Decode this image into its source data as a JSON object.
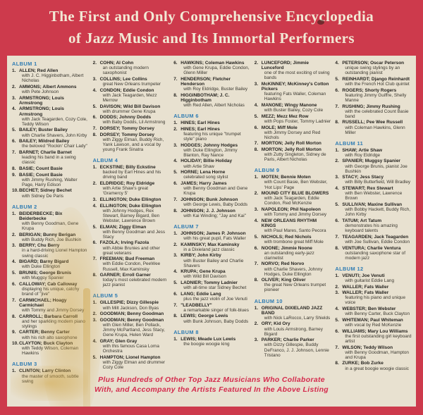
{
  "header": {
    "line1": "The First and Only Comprehensive Encyclopedia",
    "line2": "of Jazz Music and Its Immortal Performers"
  },
  "footer": {
    "line1": "Plus Hundreds of Other Top Jazz Musicians Who Collaborate",
    "line2": "With, and Accompany the Artists Featured In the Above Listing"
  },
  "colors": {
    "frame_red": "#cd3a4c",
    "panel_cream": "#e8e1d0",
    "album_header_blue": "#2f7cb3",
    "body_text": "#262420",
    "footer_red": "#d42b4d"
  },
  "columns": [
    {
      "blocks": [
        {
          "album": "ALBUM 1"
        },
        {
          "num": "1.",
          "name": "ALLEN; Red Allen",
          "desc": "with J. C. Higginbotham, Albert Nicholas"
        },
        {
          "num": "2.",
          "name": "AMMONS; Albert Ammons",
          "desc": "with Pete Johnson"
        },
        {
          "num": "3.",
          "name": "ARMSTRONG; Louis Armstrong",
          "desc": ""
        },
        {
          "num": "4.",
          "name": "ARMSTRONG; Louis Armstrong",
          "desc": "with Jack Teagarden, Cozy Cole, Teddy Wilson"
        },
        {
          "num": "5.",
          "name": "BAILEY; Buster Bailey",
          "desc": "with Charlie Shavers, John Kirby"
        },
        {
          "num": "6.",
          "name": "BAILEY; Mildred Bailey",
          "desc": "the beloved \"Rockin' Chair Lady\""
        },
        {
          "num": "7.",
          "name": "BARNET; Charlie Barnet",
          "desc": "leading his band in a swing classic"
        },
        {
          "num": "8.",
          "name": "BASIE; Count Basie",
          "desc": ""
        },
        {
          "num": "9.",
          "name": "BASIE; Count Basie",
          "desc": "with Jimmy Rushing, Walter Page, Harry Edison"
        },
        {
          "num": "10.",
          "name": "BECHET; Sidney Bechet",
          "desc": "with Sidney De Paris"
        },
        {
          "album": "ALBUM 2"
        },
        {
          "num": "1.",
          "name": "BEIDERBECKE; Bix Beiderbecke",
          "desc": "with Benny Goodman, Gene Krupa"
        },
        {
          "num": "2.",
          "name": "BERIGAN; Bunny Berigan",
          "desc": "with Buddy Rich, Joe Bushkin"
        },
        {
          "num": "3.",
          "name": "BERRY; Chu Berry",
          "desc": "in a hard-driving Lionel Hampton swing classic"
        },
        {
          "num": "4.",
          "name": "BIGARD; Barny Bigard",
          "desc": "with Duke Ellington"
        },
        {
          "num": "5.",
          "name": "BRUNIS; George Brunis",
          "desc": "with Muggsy Spanier"
        },
        {
          "num": "6.",
          "name": "CALLOWAY; Cab Calloway",
          "desc": "displaying his unique, catchy brand of \"jive\""
        },
        {
          "num": "7.",
          "name": "CARMICHAEL; Hoagy Carmichael",
          "desc": "with Tommy and Jimmy Dorsey"
        },
        {
          "num": "8.",
          "name": "CARROLL; Barbara Carroll",
          "desc": "and her sparkling modern piano stylings"
        },
        {
          "num": "9.",
          "name": "CARTER; Benny Carter",
          "desc": "with his rich alto saxophone"
        },
        {
          "num": "10.",
          "name": "CLAYTON; Buck Clayton",
          "desc": "with Teddy Wilson, Coleman Hawkins"
        },
        {
          "album": "ALBUM 3"
        },
        {
          "num": "1.",
          "name": "CLINTON; Larry Clinton",
          "desc": "the master of smooth, subtle swing"
        }
      ]
    },
    {
      "blocks": [
        {
          "num": "2.",
          "name": "COHN; Al Cohn",
          "desc": "an outstanding modern saxophonist"
        },
        {
          "num": "3.",
          "name": "COLLINS; Lee Collins",
          "desc": "great New Orleans trumpeter"
        },
        {
          "num": "4.",
          "name": "CONDON; Eddie Condon",
          "desc": "with Jack Teagarden, Mezz Merrow"
        },
        {
          "num": "5.",
          "name": "DAVISON; Wild Bill Davison",
          "desc": "with drummer Gene Krupa"
        },
        {
          "num": "6.",
          "name": "DODDS; Johnny Dodds",
          "desc": "with Baby Dodds, Lil Armstrong"
        },
        {
          "num": "7.",
          "name": "DORSEY; Tommy Dorsey",
          "desc": ""
        },
        {
          "num": "8.",
          "name": "DORSEY; Tommy Dorsey",
          "desc": "with Ziggy Elman, Buddy Rich, Yank Lawson, and a vocal by young Frank Sinatra"
        },
        {
          "album": "ALBUM 4"
        },
        {
          "num": "1.",
          "name": "ECKSTINE; Billy Eckstine",
          "desc": "backed by Earl Hines and his driving band"
        },
        {
          "num": "2.",
          "name": "ELDRIDGE; Roy Eldridge",
          "desc": "with Artie Shaw's great 'Gramercy 5'"
        },
        {
          "num": "3.",
          "name": "ELLINGTON; Duke Ellington",
          "desc": ""
        },
        {
          "num": "4.",
          "name": "ELLINGTON; Duke Ellington",
          "desc": "with Johnny Hodges, Rex Stewart, Barney Bigard, Ben Webster, Lawrence Brown"
        },
        {
          "num": "5.",
          "name": "ELMAN; Ziggy Elman",
          "desc": "with Benny Goodman and Jess Stacy"
        },
        {
          "num": "6.",
          "name": "FAZOLA; Irving Fazola",
          "desc": "with Abbie Brunies and other great veterans"
        },
        {
          "num": "7.",
          "name": "FREEMAN; Bud Freeman",
          "desc": "with Eddie Condon, PeeWee Russell, Max Kaminsky"
        },
        {
          "num": "8.",
          "name": "GARNER; Erroll Garner",
          "desc": "today's most celebrated modern jazz pianist"
        },
        {
          "album": "ALBUM 5"
        },
        {
          "num": "1.",
          "name": "GILLESPIE; Dizzy Gillespie",
          "desc": "with Milt Jackson, Don Byas"
        },
        {
          "num": "2.",
          "name": "GOODMAN; Benny Goodman",
          "desc": ""
        },
        {
          "num": "3.",
          "name": "GOODMAN; Benny Goodman",
          "desc": "with Glen Miller, Ben Pollack, Jimmy McPartland, Jess Stacy, Gene Krupa, Helen Ward"
        },
        {
          "num": "4.",
          "name": "GRAY; Glen Gray",
          "desc": "with this famous Casa Loma Orchestra"
        },
        {
          "num": "5.",
          "name": "HAMPTON; Lionel Hampton",
          "desc": "with Ziggy Elman and drummer Cozy Cole"
        }
      ]
    },
    {
      "blocks": [
        {
          "num": "6.",
          "name": "HAWKINS; Coleman Hawkins",
          "desc": "with Gene Krupa, Eddie Condon, Glenn Miller"
        },
        {
          "num": "7.",
          "name": "HENDERSON; Fletcher Henderson",
          "desc": "with Roy Eldridge, Buster Bailey"
        },
        {
          "num": "8.",
          "name": "HIGGINBOTHAM; J. C. Higginbotham",
          "desc": "with Red Allen, Albert Nicholas"
        },
        {
          "album": "ALBUM 6"
        },
        {
          "num": "1.",
          "name": "HINES; Earl Hines",
          "desc": ""
        },
        {
          "num": "2.",
          "name": "HINES; Earl Hines",
          "desc": "featuring his unique \"trumpet style\" piano"
        },
        {
          "num": "3.",
          "name": "HODGES; Johnny Hodges",
          "desc": "with Duke Ellington, Jimmy Blanton, Ray Nance"
        },
        {
          "num": "4.",
          "name": "HOLIDAY; Billie Holiday",
          "desc": "with Artie Shaw"
        },
        {
          "num": "5.",
          "name": "HORNE; Lena Horne",
          "desc": "celebrated song stylist"
        },
        {
          "num": "6.",
          "name": "JAMES; Harry James",
          "desc": "with Benny Goodman and Gene Krupa"
        },
        {
          "num": "7.",
          "name": "JOHNSON; Bunk Johnson",
          "desc": "with George Lewis, Baby Dodds"
        },
        {
          "num": "8.",
          "name": "JOHNSON; J. J. Johnson",
          "desc": "with Kai Winding; \"Jay and Kai\""
        },
        {
          "album": "ALBUM 7"
        },
        {
          "num": "1.",
          "name": "JOHNSON; James P. Johnson",
          "desc": "with his great pupil, Fats Waller"
        },
        {
          "num": "2.",
          "name": "KAMINSKY; Max Kaminsky",
          "desc": "in a Dixieland jazz classic"
        },
        {
          "num": "3.",
          "name": "KIRBY; John Kirby",
          "desc": "with Buster Bailey and Charlie Shavers"
        },
        {
          "num": "4.",
          "name": "KRUPA; Gene Krupa",
          "desc": "with Wild Bill Davison"
        },
        {
          "num": "5.",
          "name": "LADNIER; Tommy Ladnier",
          "desc": "with all-time star Sidney Bechet"
        },
        {
          "num": "6.",
          "name": "LANG; Eddie Lang",
          "desc": "plus the jazz violin of Joe Venuti"
        },
        {
          "num": "7.",
          "name": "\"LEADBELLY\"",
          "desc": "a remarkable singer of folk-blues"
        },
        {
          "num": "8.",
          "name": "LEWIS; George Lewis",
          "desc": "with Bunk Johnson, Baby Dodds"
        },
        {
          "album": "ALBUM 8"
        },
        {
          "num": "1.",
          "name": "LEWIS; Meade Lux Lewis",
          "desc": "the boogie woogie king"
        }
      ]
    },
    {
      "blocks": [
        {
          "num": "2.",
          "name": "LUNCEFORD; Jimmie Lunceford",
          "desc": "one of the most exciting of swing bands"
        },
        {
          "num": "3.",
          "name": "McKINNEY; McKinney's Cotton Pickers",
          "desc": "featuring Fats Waller, Coleman Hawkins"
        },
        {
          "num": "4.",
          "name": "MANONE; Wingy Manone",
          "desc": "with Buster Bailey, Cozy Cole"
        },
        {
          "num": "5.",
          "name": "MEZZ; Mezz Mez Row",
          "desc": "with Pops Foster, Tommy Ladnier"
        },
        {
          "num": "6.",
          "name": "MOLE; Miff Mole",
          "desc": "with Jimmy Dorsey and Red Nichols"
        },
        {
          "num": "7.",
          "name": "MORTON; Jelly Roll Morton",
          "desc": ""
        },
        {
          "num": "8.",
          "name": "MORTON; Jelly Roll Morton",
          "desc": "with Zutty Singleton, Sidney de Paris, Albert Nicholas"
        },
        {
          "album": "ALBUM 9"
        },
        {
          "num": "1.",
          "name": "MOTEN; Bennie Moten",
          "desc": "with Count Basie, Ben Webster, 'Hot Lips' Page"
        },
        {
          "num": "2.",
          "name": "MOUND CITY BLUE BLOWERS",
          "desc": "with Jack Teagarden, Eddie Condon, Red McKenzie"
        },
        {
          "num": "3.",
          "name": "NAPOLEON; Phil Napoleon",
          "desc": "with Tommy and Jimmy Dorsey"
        },
        {
          "num": "4.",
          "name": "NEW ORLEANS RHYTHM KINGS",
          "desc": "with Paul Mares, Santo Pecora"
        },
        {
          "num": "5.",
          "name": "NICHOLS; Red Nichols",
          "desc": "with trombone great Miff Mole"
        },
        {
          "num": "6.",
          "name": "NOONE; Jimmie Noone",
          "desc": "an outstanding early-jazz clarinetist"
        },
        {
          "num": "7.",
          "name": "NORVO; Red Norvo",
          "desc": "with Charlie Shavers, Johnny Hodges, Duke Ellington"
        },
        {
          "num": "8.",
          "name": "OLIVER; King Oliver",
          "desc": "the great New Orleans trumpet pioneer"
        },
        {
          "album": "ALBUM 10"
        },
        {
          "num": "1.",
          "name": "ORIGINAL DIXIELAND JAZZ BAND",
          "desc": "with Nick LaRocco, Larry Shields"
        },
        {
          "num": "2.",
          "name": "ORY; Kid Ory",
          "desc": "with Louis Armstrong, Barney Bigard"
        },
        {
          "num": "3.",
          "name": "PARKER; Charlie Parker",
          "desc": "with Dizzy Gillespie, Buddy DeFranco, J. J. Johnson, Lennie Tristano"
        }
      ]
    },
    {
      "blocks": [
        {
          "num": "4.",
          "name": "PETERSON; Oscar Peterson",
          "desc": "unique swing stylings by an outstanding pianist"
        },
        {
          "num": "5.",
          "name": "REINHARDT; Django Reinhardt",
          "desc": "with the French Hot Club quintet"
        },
        {
          "num": "6.",
          "name": "ROGERS; Shorty Rogers",
          "desc": "featuring Jimmy Guiffre, Shelly Manne"
        },
        {
          "num": "7.",
          "name": "RUSHING; Jimmy Rushing",
          "desc": "with the celebrated Count Basie band"
        },
        {
          "num": "8.",
          "name": "RUSSELL; Pee Wee Russell",
          "desc": "with Coleman Hawkins, Glenn Miller"
        },
        {
          "album": "ALBUM 11"
        },
        {
          "num": "1.",
          "name": "SHAW; Artie Shaw",
          "desc": "with Roy Eldridge"
        },
        {
          "num": "2.",
          "name": "SPANIER; Muggsy Spanier",
          "desc": "with George Brunis, pianist Joe Bushkin"
        },
        {
          "num": "3.",
          "name": "STACY; Jess Stacy",
          "desc": "with Billy Butterfield, Will Bradley"
        },
        {
          "num": "4.",
          "name": "STEWART; Rex Stewart",
          "desc": "with Ben Webster, Lawrence Brown"
        },
        {
          "num": "5.",
          "name": "SULLIVAN; Maxine Sullivan",
          "desc": "with Bobby Hackett, Buddy Rich, John Kirby"
        },
        {
          "num": "6.",
          "name": "TATUM; Art Tatum",
          "desc": "demonstrates his amazing keyboard talents"
        },
        {
          "num": "7.",
          "name": "TEAGARDEN; Jack Teagarden",
          "desc": "with Joe Sullivan, Eddie Condon"
        },
        {
          "num": "8.",
          "name": "VENTURA; Charlie Ventura",
          "desc": "outstanding saxophone star of modern jazz"
        },
        {
          "album": "ALBUM 12"
        },
        {
          "num": "1.",
          "name": "VENUTI; Joe Venuti",
          "desc": "with guitarist Eddie Lang"
        },
        {
          "num": "2.",
          "name": "WALLER; Fats Waller",
          "desc": ""
        },
        {
          "num": "3.",
          "name": "WALLER; Fats Waller",
          "desc": "featuring his piano and unique voice"
        },
        {
          "num": "4.",
          "name": "WEBSTER; Ben Webster",
          "desc": "with Benny Carter, Buck Clayton"
        },
        {
          "num": "5.",
          "name": "WHITEMAN; Paul Whiteman",
          "desc": "with vocal by Red McKenzie"
        },
        {
          "num": "6.",
          "name": "WILLIAMS; Mary Lou Williams",
          "desc": "the first outstanding girl keyboard artist"
        },
        {
          "num": "7.",
          "name": "WILSON; Teddy Wilson",
          "desc": "with Benny Goodman, Hampton and Krupa"
        },
        {
          "num": "8.",
          "name": "ZURKE; Bob Zurke",
          "desc": "in a great boogie woogie classic"
        }
      ]
    }
  ]
}
